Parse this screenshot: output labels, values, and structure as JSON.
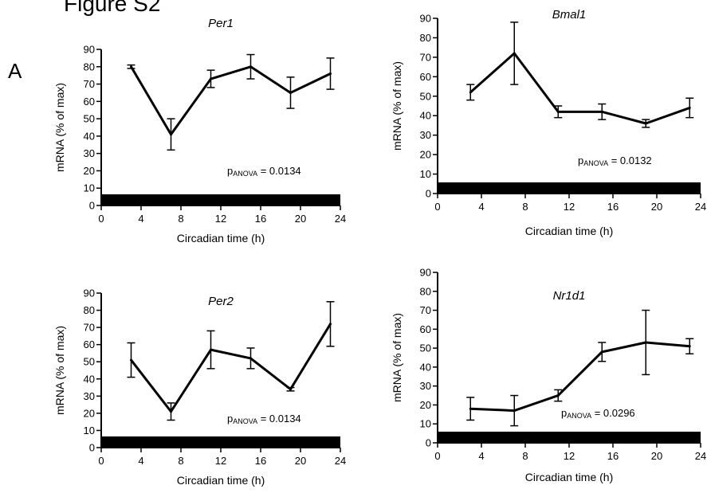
{
  "figure": {
    "title": "Figure S2",
    "panel_label": "A"
  },
  "chart_data": [
    {
      "type": "line",
      "title": "Per1",
      "xlabel": "Circadian time  (h)",
      "ylabel": "mRNA (% of max)",
      "xlim": [
        0,
        24
      ],
      "ylim": [
        0,
        90
      ],
      "xticks": [
        0,
        4,
        8,
        12,
        16,
        20,
        24
      ],
      "yticks": [
        0,
        10,
        20,
        30,
        40,
        50,
        60,
        70,
        80,
        90
      ],
      "x": [
        3,
        7,
        11,
        15,
        19,
        23
      ],
      "y": [
        80,
        41,
        73,
        80,
        65,
        76
      ],
      "yerr": [
        1,
        9,
        5,
        7,
        9,
        9
      ],
      "annotation": {
        "p": "p",
        "sub": "ANOVA",
        "value": " = 0.0134"
      },
      "dark_bar": true
    },
    {
      "type": "line",
      "title": "Bmal1",
      "xlabel": "Circadian time  (h)",
      "ylabel": "mRNA (% of max)",
      "xlim": [
        0,
        24
      ],
      "ylim": [
        0,
        90
      ],
      "xticks": [
        0,
        4,
        8,
        12,
        16,
        20,
        24
      ],
      "yticks": [
        0,
        10,
        20,
        30,
        40,
        50,
        60,
        70,
        80,
        90
      ],
      "x": [
        3,
        7,
        11,
        15,
        19,
        23
      ],
      "y": [
        52,
        72,
        42,
        42,
        36,
        44
      ],
      "yerr": [
        4,
        16,
        3,
        4,
        2,
        5
      ],
      "annotation": {
        "p": "p",
        "sub": "ANOVA",
        "value": " = 0.0132"
      },
      "dark_bar": true
    },
    {
      "type": "line",
      "title": "Per2",
      "xlabel": "Circadian time  (h)",
      "ylabel": "mRNA (% of max)",
      "xlim": [
        0,
        24
      ],
      "ylim": [
        0,
        90
      ],
      "xticks": [
        0,
        4,
        8,
        12,
        16,
        20,
        24
      ],
      "yticks": [
        0,
        10,
        20,
        30,
        40,
        50,
        60,
        70,
        80,
        90
      ],
      "x": [
        3,
        7,
        11,
        15,
        19,
        23
      ],
      "y": [
        51,
        21,
        57,
        52,
        34,
        72
      ],
      "yerr": [
        10,
        5,
        11,
        6,
        1,
        13
      ],
      "annotation": {
        "p": "p",
        "sub": "ANOVA",
        "value": " = 0.0134"
      },
      "dark_bar": true
    },
    {
      "type": "line",
      "title": "Nr1d1",
      "xlabel": "Circadian time  (h)",
      "ylabel": "mRNA (% of max)",
      "xlim": [
        0,
        24
      ],
      "ylim": [
        0,
        90
      ],
      "xticks": [
        0,
        4,
        8,
        12,
        16,
        20,
        24
      ],
      "yticks": [
        0,
        10,
        20,
        30,
        40,
        50,
        60,
        70,
        80,
        90
      ],
      "x": [
        3,
        7,
        11,
        15,
        19,
        23
      ],
      "y": [
        18,
        17,
        25,
        48,
        53,
        51
      ],
      "yerr": [
        6,
        8,
        3,
        5,
        17,
        4
      ],
      "annotation": {
        "p": "p",
        "sub": "ANOVA",
        "value": " = 0.0296"
      },
      "dark_bar": true
    }
  ]
}
